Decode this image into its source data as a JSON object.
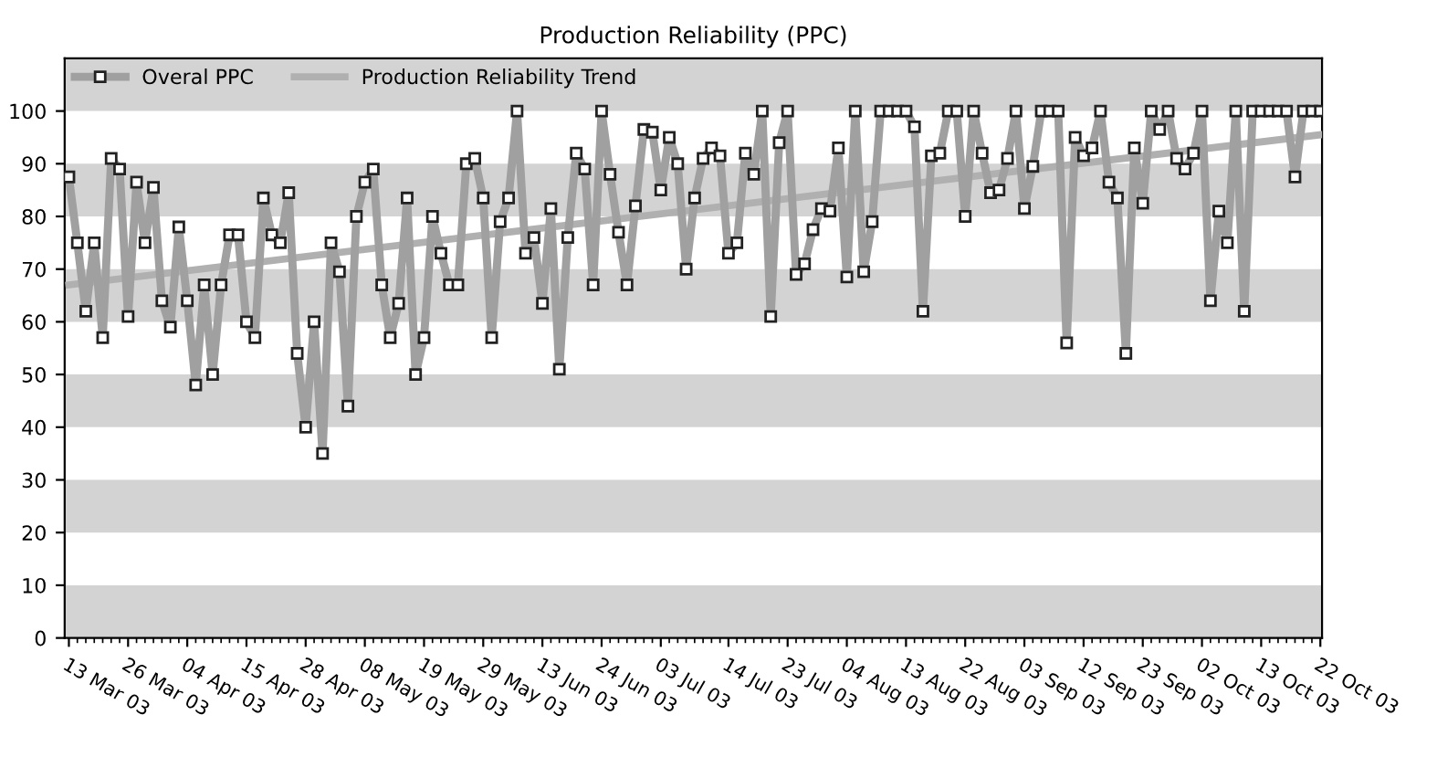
{
  "chart_data": {
    "type": "line",
    "title": "Production Reliability (PPC)",
    "categories": [
      "13 Mar 03",
      null,
      null,
      null,
      null,
      null,
      null,
      "26 Mar 03",
      null,
      null,
      null,
      null,
      null,
      null,
      "04 Apr 03",
      null,
      null,
      null,
      null,
      null,
      null,
      "15 Apr 03",
      null,
      null,
      null,
      null,
      null,
      null,
      "28 Apr 03",
      null,
      null,
      null,
      null,
      null,
      null,
      "08 May 03",
      null,
      null,
      null,
      null,
      null,
      null,
      "19 May 03",
      null,
      null,
      null,
      null,
      null,
      null,
      "29 May 03",
      null,
      null,
      null,
      null,
      null,
      null,
      "13 Jun 03",
      null,
      null,
      null,
      null,
      null,
      null,
      "24 Jun 03",
      null,
      null,
      null,
      null,
      null,
      null,
      "03 Jul 03",
      null,
      null,
      null,
      null,
      null,
      null,
      null,
      "14 Jul 03",
      null,
      null,
      null,
      null,
      null,
      null,
      "23 Jul 03",
      null,
      null,
      null,
      null,
      null,
      null,
      "04 Aug 03",
      null,
      null,
      null,
      null,
      null,
      null,
      "13 Aug 03",
      null,
      null,
      null,
      null,
      null,
      null,
      "22 Aug 03",
      null,
      null,
      null,
      null,
      null,
      null,
      "03 Sep 03",
      null,
      null,
      null,
      null,
      null,
      null,
      "12 Sep 03",
      null,
      null,
      null,
      null,
      null,
      null,
      "23 Sep 03",
      null,
      null,
      null,
      null,
      null,
      null,
      "02 Oct 03",
      null,
      null,
      null,
      null,
      null,
      null,
      "13 Oct 03",
      null,
      null,
      null,
      null,
      null,
      null,
      "22 Oct 03"
    ],
    "series": [
      {
        "name": "Overal PPC",
        "color": "#a0a0a0",
        "marker": "square",
        "values": [
          87.5,
          75,
          62,
          75,
          57,
          91,
          89,
          61,
          86.5,
          75,
          85.5,
          64,
          59,
          78,
          64,
          48,
          67,
          50,
          67,
          76.5,
          76.5,
          60,
          57,
          83.5,
          76.5,
          75,
          84.5,
          54,
          40,
          60,
          35,
          75,
          69.5,
          44,
          80,
          86.5,
          89,
          67,
          57,
          63.5,
          83.5,
          50,
          57,
          80,
          73,
          67,
          67,
          90,
          91,
          83.5,
          57,
          79,
          83.5,
          100,
          73,
          76,
          63.5,
          81.5,
          51,
          76,
          92,
          89,
          67,
          100,
          88,
          77,
          67,
          82,
          96.5,
          96,
          85,
          95,
          90,
          70,
          83.5,
          91,
          93,
          91.5,
          73,
          75,
          92,
          88,
          100,
          61,
          94,
          100,
          69,
          71,
          77.5,
          81.5,
          81,
          93,
          68.5,
          100,
          69.5,
          79,
          100,
          100,
          100,
          100,
          97,
          62,
          91.5,
          92,
          100,
          100,
          80,
          100,
          92,
          84.5,
          85,
          91,
          100,
          81.5,
          89.5,
          100,
          100,
          100,
          56,
          95,
          91.5,
          93,
          100,
          86.5,
          83.5,
          54,
          93,
          82.5,
          100,
          96.5,
          100,
          91,
          89,
          92,
          100,
          64,
          81,
          75,
          100,
          62,
          100,
          100,
          100,
          100,
          100,
          87.5,
          100,
          100,
          100
        ]
      },
      {
        "name": "Production Reliability Trend",
        "color": "#b0b0b0",
        "marker": "none",
        "x": [
          "13 Mar 03",
          "22 Oct 03"
        ],
        "values": [
          67,
          95.5
        ]
      }
    ],
    "ylim": [
      0,
      110
    ],
    "yticks": [
      0,
      10,
      20,
      30,
      40,
      50,
      60,
      70,
      80,
      90,
      100
    ],
    "bands": [
      {
        "axis": "y",
        "from": 0,
        "to": 10,
        "color": "#d3d3d3"
      },
      {
        "axis": "y",
        "from": 20,
        "to": 30,
        "color": "#d3d3d3"
      },
      {
        "axis": "y",
        "from": 40,
        "to": 50,
        "color": "#d3d3d3"
      },
      {
        "axis": "y",
        "from": 60,
        "to": 70,
        "color": "#d3d3d3"
      },
      {
        "axis": "y",
        "from": 80,
        "to": 90,
        "color": "#d3d3d3"
      },
      {
        "axis": "y",
        "from": 100,
        "to": 110,
        "color": "#d3d3d3"
      }
    ],
    "legend": "top left",
    "grid": false,
    "line_style": "solid"
  }
}
